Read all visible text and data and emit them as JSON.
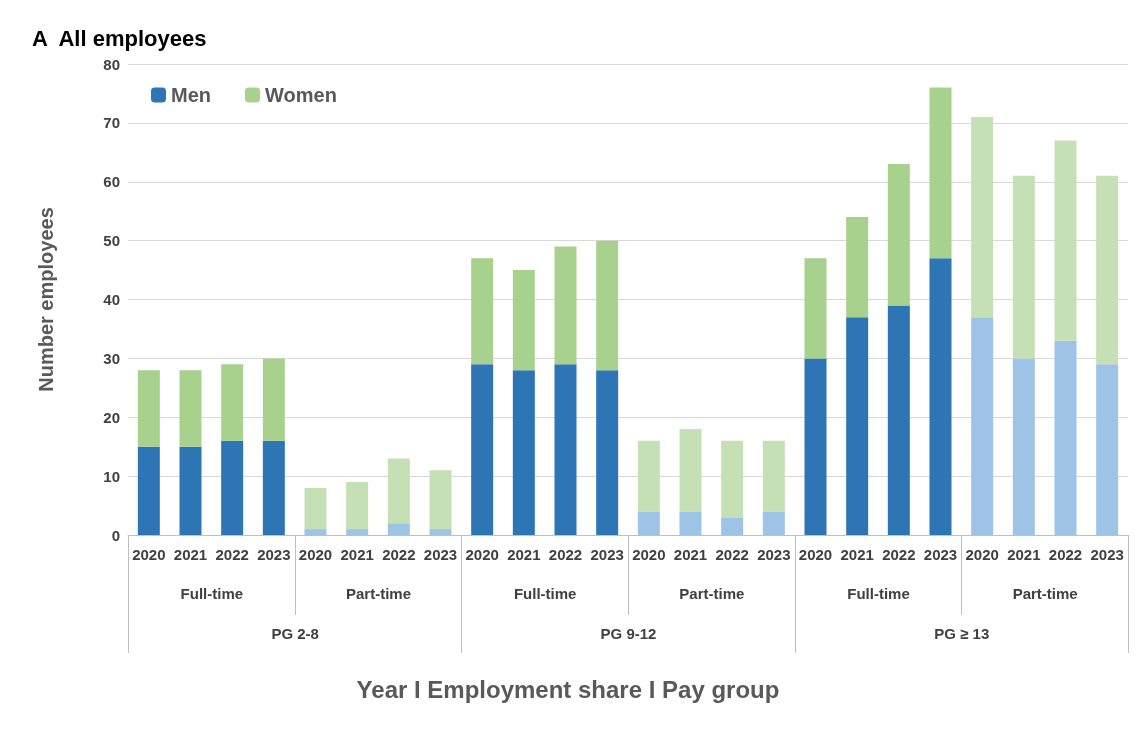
{
  "chart_data": {
    "type": "bar",
    "title": "A  All employees",
    "xlabel": "Year I Employment share I Pay group",
    "ylabel": "Number employees",
    "categories": [
      "2020",
      "2021",
      "2022",
      "2023",
      "2020",
      "2021",
      "2022",
      "2023",
      "2020",
      "2021",
      "2022",
      "2023",
      "2020",
      "2021",
      "2022",
      "2023",
      "2020",
      "2021",
      "2022",
      "2023",
      "2020",
      "2021",
      "2022",
      "2023"
    ],
    "annotations": [
      "Full-time",
      "Part-time",
      "Full-time",
      "Part-time",
      "Full-time",
      "Part-time",
      "PG 2-8",
      "PG 9-12",
      "PG ≥ 13"
    ],
    "stacked": true,
    "series": [
      {
        "name": "Men",
        "color": "#2e75b6",
        "values": [
          15,
          15,
          16,
          16,
          1,
          1,
          2,
          1,
          29,
          28,
          29,
          28,
          4,
          4,
          3,
          4,
          30,
          37,
          39,
          47,
          37,
          30,
          33,
          29
        ],
        "colors": [
          "#2e75b6",
          "#2e75b6",
          "#2e75b6",
          "#2e75b6",
          "#9dc3e6",
          "#9dc3e6",
          "#9dc3e6",
          "#9dc3e6",
          "#2e75b6",
          "#2e75b6",
          "#2e75b6",
          "#2e75b6",
          "#9dc3e6",
          "#9dc3e6",
          "#9dc3e6",
          "#9dc3e6",
          "#2e75b6",
          "#2e75b6",
          "#2e75b6",
          "#2e75b6",
          "#9dc3e6",
          "#9dc3e6",
          "#9dc3e6",
          "#9dc3e6"
        ]
      },
      {
        "name": "Women",
        "color": "#a9d18e",
        "values": [
          13,
          13,
          13,
          14,
          7,
          8,
          11,
          10,
          18,
          17,
          20,
          22,
          12,
          14,
          13,
          12,
          17,
          17,
          24,
          29,
          34,
          31,
          34,
          32
        ],
        "colors": [
          "#a9d18e",
          "#a9d18e",
          "#a9d18e",
          "#a9d18e",
          "#c5e0b4",
          "#c5e0b4",
          "#c5e0b4",
          "#c5e0b4",
          "#a9d18e",
          "#a9d18e",
          "#a9d18e",
          "#a9d18e",
          "#c5e0b4",
          "#c5e0b4",
          "#c5e0b4",
          "#c5e0b4",
          "#a9d18e",
          "#a9d18e",
          "#a9d18e",
          "#a9d18e",
          "#c5e0b4",
          "#c5e0b4",
          "#c5e0b4",
          "#c5e0b4"
        ]
      }
    ],
    "ylim": [
      0,
      80
    ],
    "yticks": [
      0,
      10,
      20,
      30,
      40,
      50,
      60,
      70,
      80
    ],
    "grid": "y",
    "legend": "top left"
  }
}
